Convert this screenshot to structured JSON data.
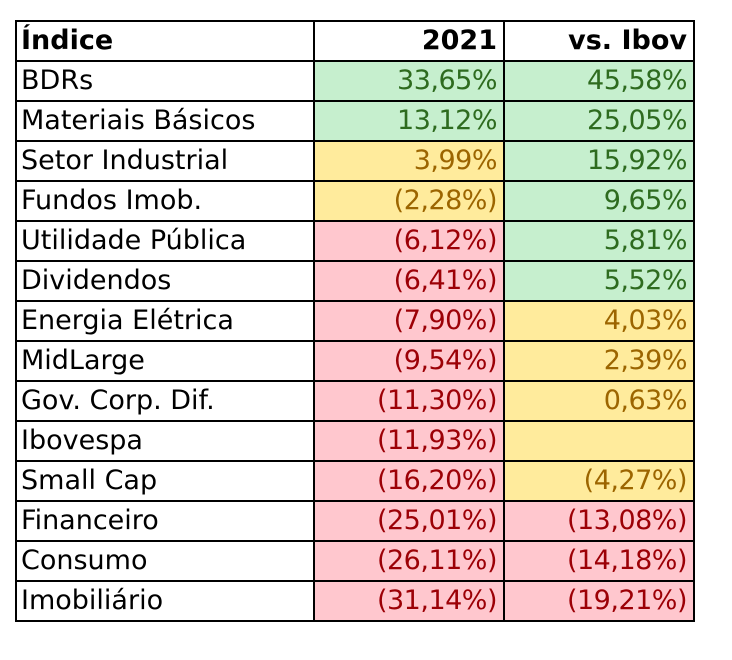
{
  "headers": {
    "name": "Índice",
    "year": "2021",
    "vs": "vs. Ibov"
  },
  "colors": {
    "green_bg": "#c6efce",
    "green_text": "#2e6b1f",
    "yellow_bg": "#ffeb9c",
    "yellow_text": "#9c6500",
    "red_bg": "#ffc7ce",
    "red_text": "#9c0006"
  },
  "rows": [
    {
      "name": "BDRs",
      "y2021": "33,65%",
      "y_tone": "green",
      "vs": "45,58%",
      "vs_tone": "green"
    },
    {
      "name": "Materiais Básicos",
      "y2021": "13,12%",
      "y_tone": "green",
      "vs": "25,05%",
      "vs_tone": "green"
    },
    {
      "name": "Setor Industrial",
      "y2021": "3,99%",
      "y_tone": "yellow",
      "vs": "15,92%",
      "vs_tone": "green"
    },
    {
      "name": "Fundos Imob.",
      "y2021": "(2,28%)",
      "y_tone": "yellow",
      "vs": "9,65%",
      "vs_tone": "green"
    },
    {
      "name": "Utilidade Pública",
      "y2021": "(6,12%)",
      "y_tone": "red",
      "vs": "5,81%",
      "vs_tone": "green"
    },
    {
      "name": "Dividendos",
      "y2021": "(6,41%)",
      "y_tone": "red",
      "vs": "5,52%",
      "vs_tone": "green"
    },
    {
      "name": "Energia Elétrica",
      "y2021": "(7,90%)",
      "y_tone": "red",
      "vs": "4,03%",
      "vs_tone": "yellow"
    },
    {
      "name": "MidLarge",
      "y2021": "(9,54%)",
      "y_tone": "red",
      "vs": "2,39%",
      "vs_tone": "yellow"
    },
    {
      "name": "Gov. Corp. Dif.",
      "y2021": "(11,30%)",
      "y_tone": "red",
      "vs": "0,63%",
      "vs_tone": "yellow"
    },
    {
      "name": "Ibovespa",
      "y2021": "(11,93%)",
      "y_tone": "red",
      "vs": "",
      "vs_tone": "yellow"
    },
    {
      "name": "Small Cap",
      "y2021": "(16,20%)",
      "y_tone": "red",
      "vs": "(4,27%)",
      "vs_tone": "yellow"
    },
    {
      "name": "Financeiro",
      "y2021": "(25,01%)",
      "y_tone": "red",
      "vs": "(13,08%)",
      "vs_tone": "red"
    },
    {
      "name": "Consumo",
      "y2021": "(26,11%)",
      "y_tone": "red",
      "vs": "(14,18%)",
      "vs_tone": "red"
    },
    {
      "name": "Imobiliário",
      "y2021": "(31,14%)",
      "y_tone": "red",
      "vs": "(19,21%)",
      "vs_tone": "red"
    }
  ]
}
